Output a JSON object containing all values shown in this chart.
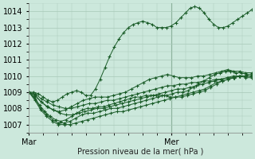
{
  "title": "",
  "xlabel": "Pression niveau de la mer( hPa )",
  "ylabel": "",
  "bg_color": "#cce8dc",
  "plot_bg_color": "#cce8dc",
  "grid_color": "#a8c8b8",
  "line_color": "#1a5c28",
  "marker_color": "#1a5c28",
  "ylim": [
    1006.5,
    1014.5
  ],
  "xlim": [
    0,
    47
  ],
  "yticks": [
    1007,
    1008,
    1009,
    1010,
    1011,
    1012,
    1013,
    1014
  ],
  "xtick_labels": [
    "Mar",
    "Mer"
  ],
  "xtick_positions": [
    0,
    30
  ],
  "vline_x": 30,
  "series": [
    [
      1009.0,
      1009.0,
      1008.9,
      1008.7,
      1008.5,
      1008.4,
      1008.5,
      1008.7,
      1008.9,
      1009.0,
      1009.1,
      1009.0,
      1008.8,
      1008.8,
      1009.2,
      1009.8,
      1010.5,
      1011.2,
      1011.8,
      1012.3,
      1012.7,
      1013.0,
      1013.2,
      1013.3,
      1013.4,
      1013.3,
      1013.2,
      1013.0,
      1013.0,
      1013.0,
      1013.1,
      1013.3,
      1013.6,
      1013.9,
      1014.2,
      1014.3,
      1014.2,
      1013.9,
      1013.5,
      1013.2,
      1013.0,
      1013.0,
      1013.1,
      1013.3,
      1013.5,
      1013.7,
      1013.9,
      1014.1
    ],
    [
      1009.0,
      1008.8,
      1008.4,
      1008.1,
      1007.9,
      1007.8,
      1007.9,
      1008.1,
      1008.3,
      1008.5,
      1008.6,
      1008.7,
      1008.7,
      1008.7,
      1008.8,
      1008.9,
      1009.0,
      1009.2,
      1009.4,
      1009.6,
      1009.8,
      1009.9,
      1010.0,
      1010.1,
      1010.0,
      1009.9,
      1009.9,
      1009.9,
      1010.0,
      1010.0,
      1010.1,
      1010.2,
      1010.3,
      1010.4,
      1010.3,
      1010.3,
      1010.2,
      1010.2
    ],
    [
      1009.0,
      1008.7,
      1008.2,
      1007.8,
      1007.5,
      1007.3,
      1007.2,
      1007.3,
      1007.5,
      1007.7,
      1007.9,
      1008.0,
      1008.0,
      1008.1,
      1008.1,
      1008.2,
      1008.3,
      1008.4,
      1008.5,
      1008.6,
      1008.7,
      1008.7,
      1008.8,
      1008.8,
      1008.8,
      1008.8,
      1008.8,
      1008.9,
      1009.0,
      1009.0,
      1009.1,
      1009.3,
      1009.5,
      1009.7,
      1009.9,
      1010.1,
      1010.2,
      1010.3,
      1010.3,
      1010.2,
      1010.2,
      1010.1,
      1010.1
    ],
    [
      1009.0,
      1008.6,
      1008.0,
      1007.6,
      1007.3,
      1007.1,
      1007.1,
      1007.2,
      1007.4,
      1007.6,
      1007.7,
      1007.7,
      1007.8,
      1007.9,
      1008.0,
      1008.0,
      1008.1,
      1008.2,
      1008.3,
      1008.4,
      1008.5,
      1008.6,
      1008.7,
      1008.8,
      1008.7,
      1008.7,
      1008.8,
      1008.9,
      1009.0,
      1009.1,
      1009.2,
      1009.4,
      1009.6,
      1009.7,
      1009.8,
      1009.9,
      1010.0,
      1010.0,
      1010.0
    ],
    [
      1009.0,
      1008.5,
      1007.9,
      1007.5,
      1007.2,
      1007.0,
      1007.0,
      1007.0,
      1007.1,
      1007.2,
      1007.3,
      1007.4,
      1007.5,
      1007.6,
      1007.7,
      1007.8,
      1007.8,
      1007.9,
      1008.0,
      1008.1,
      1008.2,
      1008.3,
      1008.4,
      1008.5,
      1008.6,
      1008.7,
      1008.7,
      1008.8,
      1008.9,
      1009.0,
      1009.1,
      1009.3,
      1009.5,
      1009.7,
      1009.8,
      1009.9,
      1010.0,
      1009.9,
      1009.9
    ],
    [
      1009.0,
      1008.8,
      1008.4,
      1008.1,
      1007.9,
      1007.7,
      1007.6,
      1007.6,
      1007.7,
      1007.8,
      1007.9,
      1008.0,
      1008.0,
      1008.1,
      1008.2,
      1008.3,
      1008.4,
      1008.5,
      1008.6,
      1008.7,
      1008.8,
      1008.9,
      1009.0,
      1009.1,
      1009.2,
      1009.2,
      1009.3,
      1009.4,
      1009.5,
      1009.6,
      1009.7,
      1009.8,
      1009.9,
      1010.0,
      1010.0,
      1010.0,
      1010.0
    ],
    [
      1009.0,
      1008.9,
      1008.6,
      1008.4,
      1008.2,
      1008.1,
      1008.0,
      1008.0,
      1008.1,
      1008.2,
      1008.3,
      1008.3,
      1008.4,
      1008.5,
      1008.5,
      1008.6,
      1008.7,
      1008.8,
      1008.9,
      1009.0,
      1009.1,
      1009.2,
      1009.3,
      1009.4,
      1009.4,
      1009.5,
      1009.5,
      1009.6,
      1009.6,
      1009.7,
      1009.7,
      1009.8,
      1009.8,
      1009.9,
      1009.9,
      1010.0,
      1010.0,
      1010.0
    ]
  ]
}
